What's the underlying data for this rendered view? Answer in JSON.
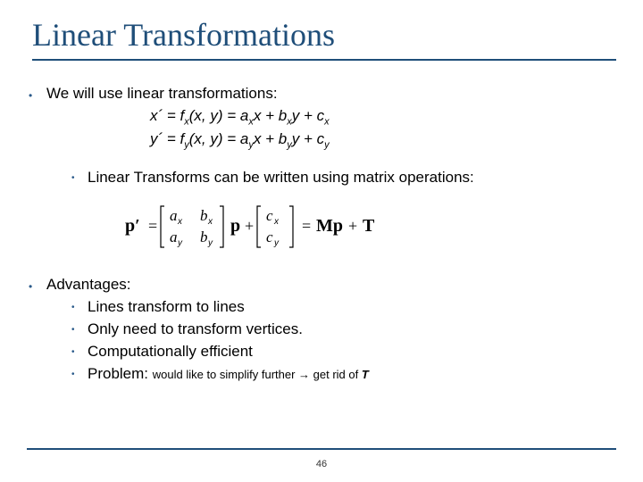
{
  "title": "Linear Transformations",
  "intro": "We will use linear transformations:",
  "eq1_html": "x´ = f<sub>x</sub>(x, y) = a<sub>x</sub>x + b<sub>x</sub>y + c<sub>x</sub>",
  "eq2_html": "y´ = f<sub>y</sub>(x, y) = a<sub>y</sub>x + b<sub>y</sub>y + c<sub>y</sub>",
  "sub1": "Linear Transforms can be written using matrix operations:",
  "advantages_label": "Advantages:",
  "adv1": "Lines transform to lines",
  "adv2": "Only need to transform vertices.",
  "adv3": "Computationally efficient",
  "adv4_prefix": "Problem: ",
  "adv4_note1": "would like to simplify further",
  "adv4_arrow": " → ",
  "adv4_note2": "get rid of ",
  "adv4_T": "T",
  "page_number": "46",
  "colors": {
    "title": "#1f4e79",
    "rule": "#1f4e79",
    "bullet": "#2a5a8a",
    "text": "#000000",
    "background": "#ffffff"
  }
}
